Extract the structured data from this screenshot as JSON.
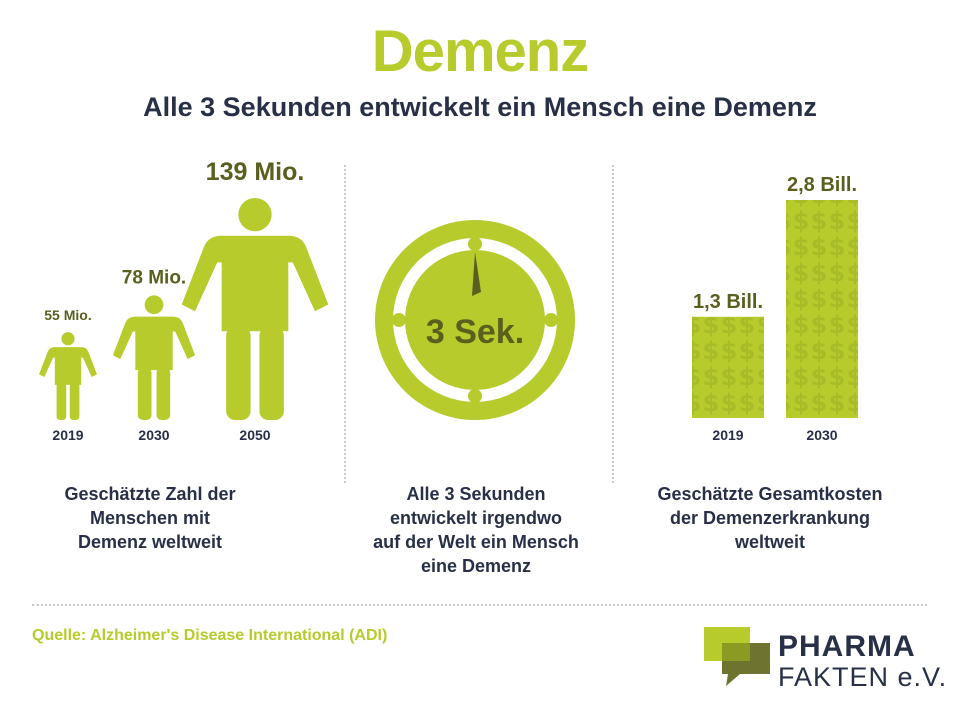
{
  "header": {
    "title": "Demenz",
    "subtitle": "Alle 3 Sekunden entwickelt ein Mensch eine Demenz"
  },
  "colors": {
    "accent": "#b7cb2c",
    "dark_green": "#5a5f1e",
    "navy": "#273047",
    "pattern_dark": "#a8bc28"
  },
  "chart_data": [
    {
      "type": "bar",
      "categories": [
        "2019",
        "2030",
        "2050"
      ],
      "values": [
        55,
        78,
        139
      ],
      "value_labels": [
        "55 Mio.",
        "78 Mio.",
        "139 Mio."
      ],
      "caption": [
        "Geschätzte Zahl der",
        "Menschen mit",
        "Demenz weltweit"
      ]
    },
    {
      "clock_label": "3 Sek.",
      "caption": [
        "Alle 3 Sekunden",
        "entwickelt irgendwo",
        "auf der Welt ein Mensch",
        "eine Demenz"
      ]
    },
    {
      "type": "bar",
      "categories": [
        "2019",
        "2030"
      ],
      "values": [
        1.3,
        2.8
      ],
      "value_labels": [
        "1,3 Bill.",
        "2,8 Bill."
      ],
      "caption": [
        "Geschätzte Gesamtkosten",
        "der Demenzerkrankung",
        "weltweit"
      ]
    }
  ],
  "footer": {
    "source": "Quelle: Alzheimer's Disease International (ADI)",
    "logo_line1": "PHARMA",
    "logo_line2": "FAKTEN e.V."
  }
}
